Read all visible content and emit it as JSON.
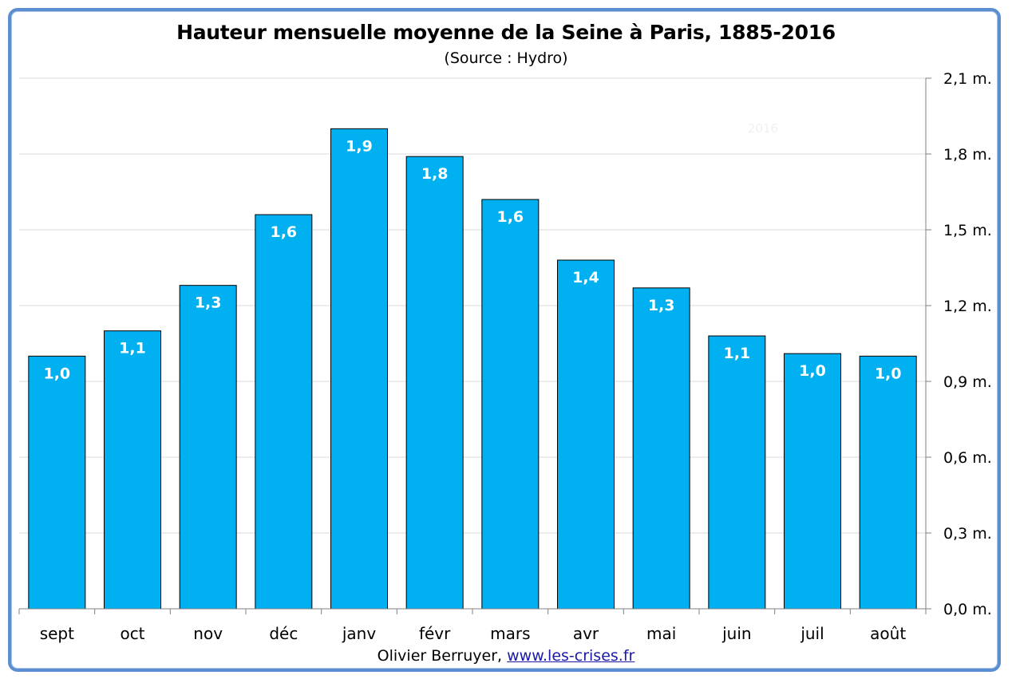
{
  "chart_data": {
    "type": "bar",
    "title": "Hauteur mensuelle moyenne de la Seine à Paris, 1885-2016",
    "subtitle": "(Source : Hydro)",
    "categories": [
      "sept",
      "oct",
      "nov",
      "déc",
      "janv",
      "févr",
      "mars",
      "avr",
      "mai",
      "juin",
      "juil",
      "août"
    ],
    "values": [
      1.0,
      1.1,
      1.28,
      1.56,
      1.9,
      1.79,
      1.62,
      1.38,
      1.27,
      1.08,
      1.01,
      1.0
    ],
    "data_labels": [
      "1,0",
      "1,1",
      "1,3",
      "1,6",
      "1,9",
      "1,8",
      "1,6",
      "1,4",
      "1,3",
      "1,1",
      "1,0",
      "1,0"
    ],
    "ylim": [
      0,
      2.1
    ],
    "y_ticks": [
      0,
      0.3,
      0.6,
      0.9,
      1.2,
      1.5,
      1.8,
      2.1
    ],
    "y_tick_labels": [
      "0,0 m.",
      "0,3 m.",
      "0,6 m.",
      "0,9 m.",
      "1,2 m.",
      "1,5 m.",
      "1,8 m.",
      "2,1 m."
    ],
    "y_axis_side": "right",
    "grid": true,
    "bar_color": "#00b0f0",
    "watermark": "2016"
  },
  "footer": {
    "author": "Olivier Berruyer,",
    "link": "www.les-crises.fr"
  }
}
